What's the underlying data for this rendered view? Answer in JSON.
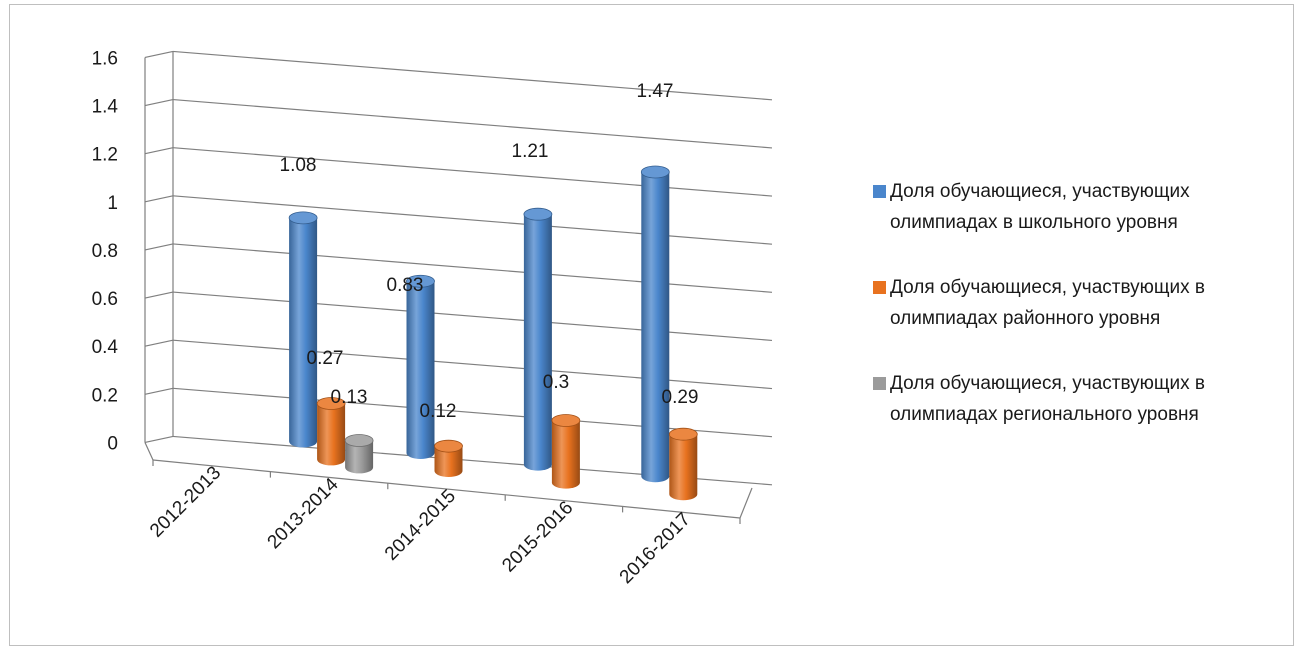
{
  "chart_data": {
    "type": "bar",
    "variant": "3d-cylinder",
    "categories": [
      "2012-2013",
      "2013-2014",
      "2014-2015",
      "2015-2016",
      "2016-2017"
    ],
    "series": [
      {
        "name": "Доля обучающиеся, участвующих олимпиадах в школьного уровня",
        "color": "#4a86cc",
        "values": [
          null,
          1.08,
          0.83,
          1.21,
          1.47
        ]
      },
      {
        "name": "Доля обучающиеся, участвующих в олимпиадах районного уровня",
        "color": "#e8721f",
        "values": [
          null,
          0.27,
          0.12,
          0.3,
          0.29
        ]
      },
      {
        "name": "Доля обучающиеся, участвующих в олимпиадах регионального уровня",
        "color": "#9b9b9b",
        "values": [
          null,
          0.13,
          null,
          null,
          null
        ]
      }
    ],
    "data_labels": [
      {
        "series": 0,
        "category": 1,
        "text": "1.08"
      },
      {
        "series": 0,
        "category": 2,
        "text": "0.83"
      },
      {
        "series": 0,
        "category": 3,
        "text": "1.21"
      },
      {
        "series": 0,
        "category": 4,
        "text": "1.47"
      },
      {
        "series": 1,
        "category": 1,
        "text": "0.27"
      },
      {
        "series": 1,
        "category": 2,
        "text": "0.12"
      },
      {
        "series": 1,
        "category": 3,
        "text": "0.3"
      },
      {
        "series": 1,
        "category": 4,
        "text": "0.29"
      },
      {
        "series": 2,
        "category": 1,
        "text": "0.13"
      }
    ],
    "yticks": [
      "0",
      "0.2",
      "0.4",
      "0.6",
      "0.8",
      "1",
      "1.2",
      "1.4",
      "1.6"
    ],
    "ylim": [
      0,
      1.6
    ],
    "grid": true,
    "legend_position": "right"
  }
}
